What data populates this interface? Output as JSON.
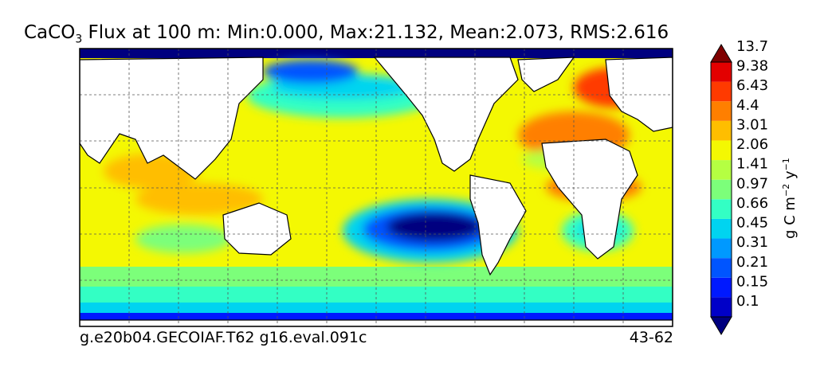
{
  "title": {
    "species_base": "CaCO",
    "species_sub": "3",
    "text": " Flux at 100 m: Min:0.000, Max:21.132, Mean:2.073, RMS:2.616"
  },
  "footer": {
    "left": "g.e20b04.GECOIAF.T62 g16.eval.091c",
    "right": "43-62"
  },
  "chart_data": {
    "type": "heatmap",
    "variable": "CaCO3 Flux at 100 m",
    "stats": {
      "min": 0.0,
      "max": 21.132,
      "mean": 2.073,
      "rms": 2.616
    },
    "units": "g C m⁻² y⁻¹",
    "colorbar": {
      "levels": [
        "0.1",
        "0.15",
        "0.21",
        "0.31",
        "0.45",
        "0.66",
        "0.97",
        "1.41",
        "2.06",
        "3.01",
        "4.4",
        "6.43",
        "9.38",
        "13.7"
      ],
      "colors": [
        "#00007f",
        "#0000c8",
        "#0019ff",
        "#0055ff",
        "#0099ff",
        "#00d4f0",
        "#33ffc4",
        "#7cff7a",
        "#b5ff42",
        "#f4f802",
        "#ffbe00",
        "#ff7f00",
        "#ff3a00",
        "#e30000",
        "#7f0000"
      ],
      "extend": "both"
    },
    "grid": true
  }
}
